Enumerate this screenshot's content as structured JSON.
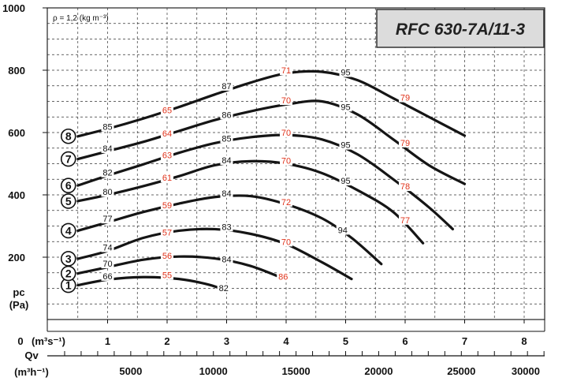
{
  "chart_data": {
    "type": "line",
    "title": "RFC 630-7A/11-3",
    "annotation": "ρ = 1,2 (kg m⁻³)",
    "ylabel": "pc",
    "yunit": "(Pa)",
    "yticks": [
      "1000",
      "800",
      "600",
      "400",
      "200"
    ],
    "xlabel_prefix": "0",
    "xunit": "(m³s⁻¹)",
    "xticks": [
      "1",
      "2",
      "3",
      "4",
      "5",
      "6",
      "7",
      "8"
    ],
    "x2label": "Qv",
    "x2unit": "(m³h⁻¹)",
    "x2ticks": [
      "5000",
      "10000",
      "15000",
      "20000",
      "25000",
      "30000"
    ],
    "xlim": [
      0,
      8.4
    ],
    "ylim": [
      0,
      1000
    ],
    "grid": true,
    "series": [
      {
        "name": "1",
        "points": [
          [
            0.5,
            110
          ],
          [
            1.0,
            128
          ],
          [
            1.6,
            136
          ],
          [
            2.2,
            130
          ],
          [
            2.7,
            112
          ],
          [
            3.0,
            92
          ]
        ],
        "point_labels": [
          {
            "x": 1.0,
            "y": 132,
            "text": "66",
            "kind": "black"
          },
          {
            "x": 2.0,
            "y": 136,
            "text": "55",
            "kind": "red"
          },
          {
            "x": 2.95,
            "y": 94,
            "text": "82",
            "kind": "black"
          }
        ]
      },
      {
        "name": "2",
        "points": [
          [
            0.5,
            148
          ],
          [
            1.0,
            168
          ],
          [
            1.6,
            192
          ],
          [
            2.2,
            202
          ],
          [
            2.8,
            196
          ],
          [
            3.4,
            172
          ],
          [
            4.0,
            128
          ]
        ],
        "point_labels": [
          {
            "x": 1.0,
            "y": 172,
            "text": "70",
            "kind": "black"
          },
          {
            "x": 2.0,
            "y": 198,
            "text": "56",
            "kind": "red"
          },
          {
            "x": 3.0,
            "y": 186,
            "text": "84",
            "kind": "black"
          },
          {
            "x": 3.95,
            "y": 130,
            "text": "86",
            "kind": "red"
          }
        ]
      },
      {
        "name": "3",
        "points": [
          [
            0.5,
            195
          ],
          [
            1.0,
            220
          ],
          [
            1.6,
            262
          ],
          [
            2.2,
            285
          ],
          [
            2.8,
            290
          ],
          [
            3.4,
            275
          ],
          [
            4.0,
            242
          ],
          [
            4.6,
            184
          ],
          [
            5.1,
            130
          ]
        ],
        "point_labels": [
          {
            "x": 1.0,
            "y": 224,
            "text": "74",
            "kind": "black"
          },
          {
            "x": 2.0,
            "y": 272,
            "text": "57",
            "kind": "red"
          },
          {
            "x": 3.0,
            "y": 290,
            "text": "83",
            "kind": "black"
          },
          {
            "x": 4.0,
            "y": 242,
            "text": "70",
            "kind": "red"
          }
        ]
      },
      {
        "name": "4",
        "points": [
          [
            0.5,
            285
          ],
          [
            1.0,
            312
          ],
          [
            1.6,
            345
          ],
          [
            2.2,
            372
          ],
          [
            2.8,
            393
          ],
          [
            3.4,
            396
          ],
          [
            4.0,
            370
          ],
          [
            4.6,
            325
          ],
          [
            5.1,
            262
          ],
          [
            5.6,
            178
          ]
        ],
        "point_labels": [
          {
            "x": 1.0,
            "y": 316,
            "text": "77",
            "kind": "black"
          },
          {
            "x": 2.0,
            "y": 360,
            "text": "59",
            "kind": "red"
          },
          {
            "x": 3.0,
            "y": 398,
            "text": "84",
            "kind": "black"
          },
          {
            "x": 4.0,
            "y": 370,
            "text": "72",
            "kind": "red"
          },
          {
            "x": 4.95,
            "y": 280,
            "text": "94",
            "kind": "black"
          }
        ]
      },
      {
        "name": "5",
        "points": [
          [
            0.5,
            380
          ],
          [
            1.0,
            400
          ],
          [
            1.6,
            428
          ],
          [
            2.2,
            460
          ],
          [
            2.8,
            495
          ],
          [
            3.4,
            508
          ],
          [
            4.0,
            500
          ],
          [
            4.6,
            470
          ],
          [
            5.2,
            415
          ],
          [
            5.8,
            345
          ],
          [
            6.3,
            245
          ]
        ],
        "point_labels": [
          {
            "x": 1.0,
            "y": 402,
            "text": "80",
            "kind": "black"
          },
          {
            "x": 2.0,
            "y": 448,
            "text": "61",
            "kind": "red"
          },
          {
            "x": 3.0,
            "y": 504,
            "text": "84",
            "kind": "black"
          },
          {
            "x": 4.0,
            "y": 502,
            "text": "70",
            "kind": "red"
          },
          {
            "x": 5.0,
            "y": 438,
            "text": "95",
            "kind": "black"
          },
          {
            "x": 6.0,
            "y": 312,
            "text": "77",
            "kind": "red"
          }
        ]
      },
      {
        "name": "6",
        "points": [
          [
            0.5,
            430
          ],
          [
            1.0,
            462
          ],
          [
            1.6,
            498
          ],
          [
            2.2,
            535
          ],
          [
            2.8,
            566
          ],
          [
            3.4,
            585
          ],
          [
            4.0,
            592
          ],
          [
            4.6,
            578
          ],
          [
            5.2,
            530
          ],
          [
            5.8,
            450
          ],
          [
            6.4,
            360
          ],
          [
            6.8,
            290
          ]
        ],
        "point_labels": [
          {
            "x": 1.0,
            "y": 464,
            "text": "82",
            "kind": "black"
          },
          {
            "x": 2.0,
            "y": 520,
            "text": "63",
            "kind": "red"
          },
          {
            "x": 3.0,
            "y": 574,
            "text": "85",
            "kind": "black"
          },
          {
            "x": 4.0,
            "y": 592,
            "text": "70",
            "kind": "red"
          },
          {
            "x": 5.0,
            "y": 553,
            "text": "95",
            "kind": "black"
          },
          {
            "x": 6.0,
            "y": 420,
            "text": "78",
            "kind": "red"
          }
        ]
      },
      {
        "name": "7",
        "points": [
          [
            0.5,
            515
          ],
          [
            1.0,
            540
          ],
          [
            1.6,
            570
          ],
          [
            2.2,
            605
          ],
          [
            2.8,
            640
          ],
          [
            3.4,
            668
          ],
          [
            4.0,
            690
          ],
          [
            4.6,
            700
          ],
          [
            5.2,
            658
          ],
          [
            5.8,
            578
          ],
          [
            6.4,
            495
          ],
          [
            7.0,
            435
          ]
        ],
        "point_labels": [
          {
            "x": 1.0,
            "y": 542,
            "text": "84",
            "kind": "black"
          },
          {
            "x": 2.0,
            "y": 590,
            "text": "64",
            "kind": "red"
          },
          {
            "x": 3.0,
            "y": 650,
            "text": "86",
            "kind": "black"
          },
          {
            "x": 4.0,
            "y": 696,
            "text": "70",
            "kind": "red"
          },
          {
            "x": 5.0,
            "y": 675,
            "text": "95",
            "kind": "black"
          },
          {
            "x": 6.0,
            "y": 560,
            "text": "79",
            "kind": "red"
          }
        ]
      },
      {
        "name": "8",
        "points": [
          [
            0.5,
            588
          ],
          [
            1.0,
            612
          ],
          [
            1.6,
            645
          ],
          [
            2.2,
            682
          ],
          [
            2.8,
            722
          ],
          [
            3.4,
            760
          ],
          [
            4.0,
            790
          ],
          [
            4.6,
            795
          ],
          [
            5.2,
            768
          ],
          [
            5.8,
            710
          ],
          [
            6.4,
            650
          ],
          [
            7.0,
            590
          ]
        ],
        "point_labels": [
          {
            "x": 1.0,
            "y": 612,
            "text": "85",
            "kind": "black"
          },
          {
            "x": 2.0,
            "y": 665,
            "text": "65",
            "kind": "red"
          },
          {
            "x": 3.0,
            "y": 742,
            "text": "87",
            "kind": "black"
          },
          {
            "x": 4.0,
            "y": 792,
            "text": "71",
            "kind": "red"
          },
          {
            "x": 5.0,
            "y": 786,
            "text": "95",
            "kind": "black"
          },
          {
            "x": 6.0,
            "y": 705,
            "text": "79",
            "kind": "red"
          }
        ]
      }
    ]
  }
}
